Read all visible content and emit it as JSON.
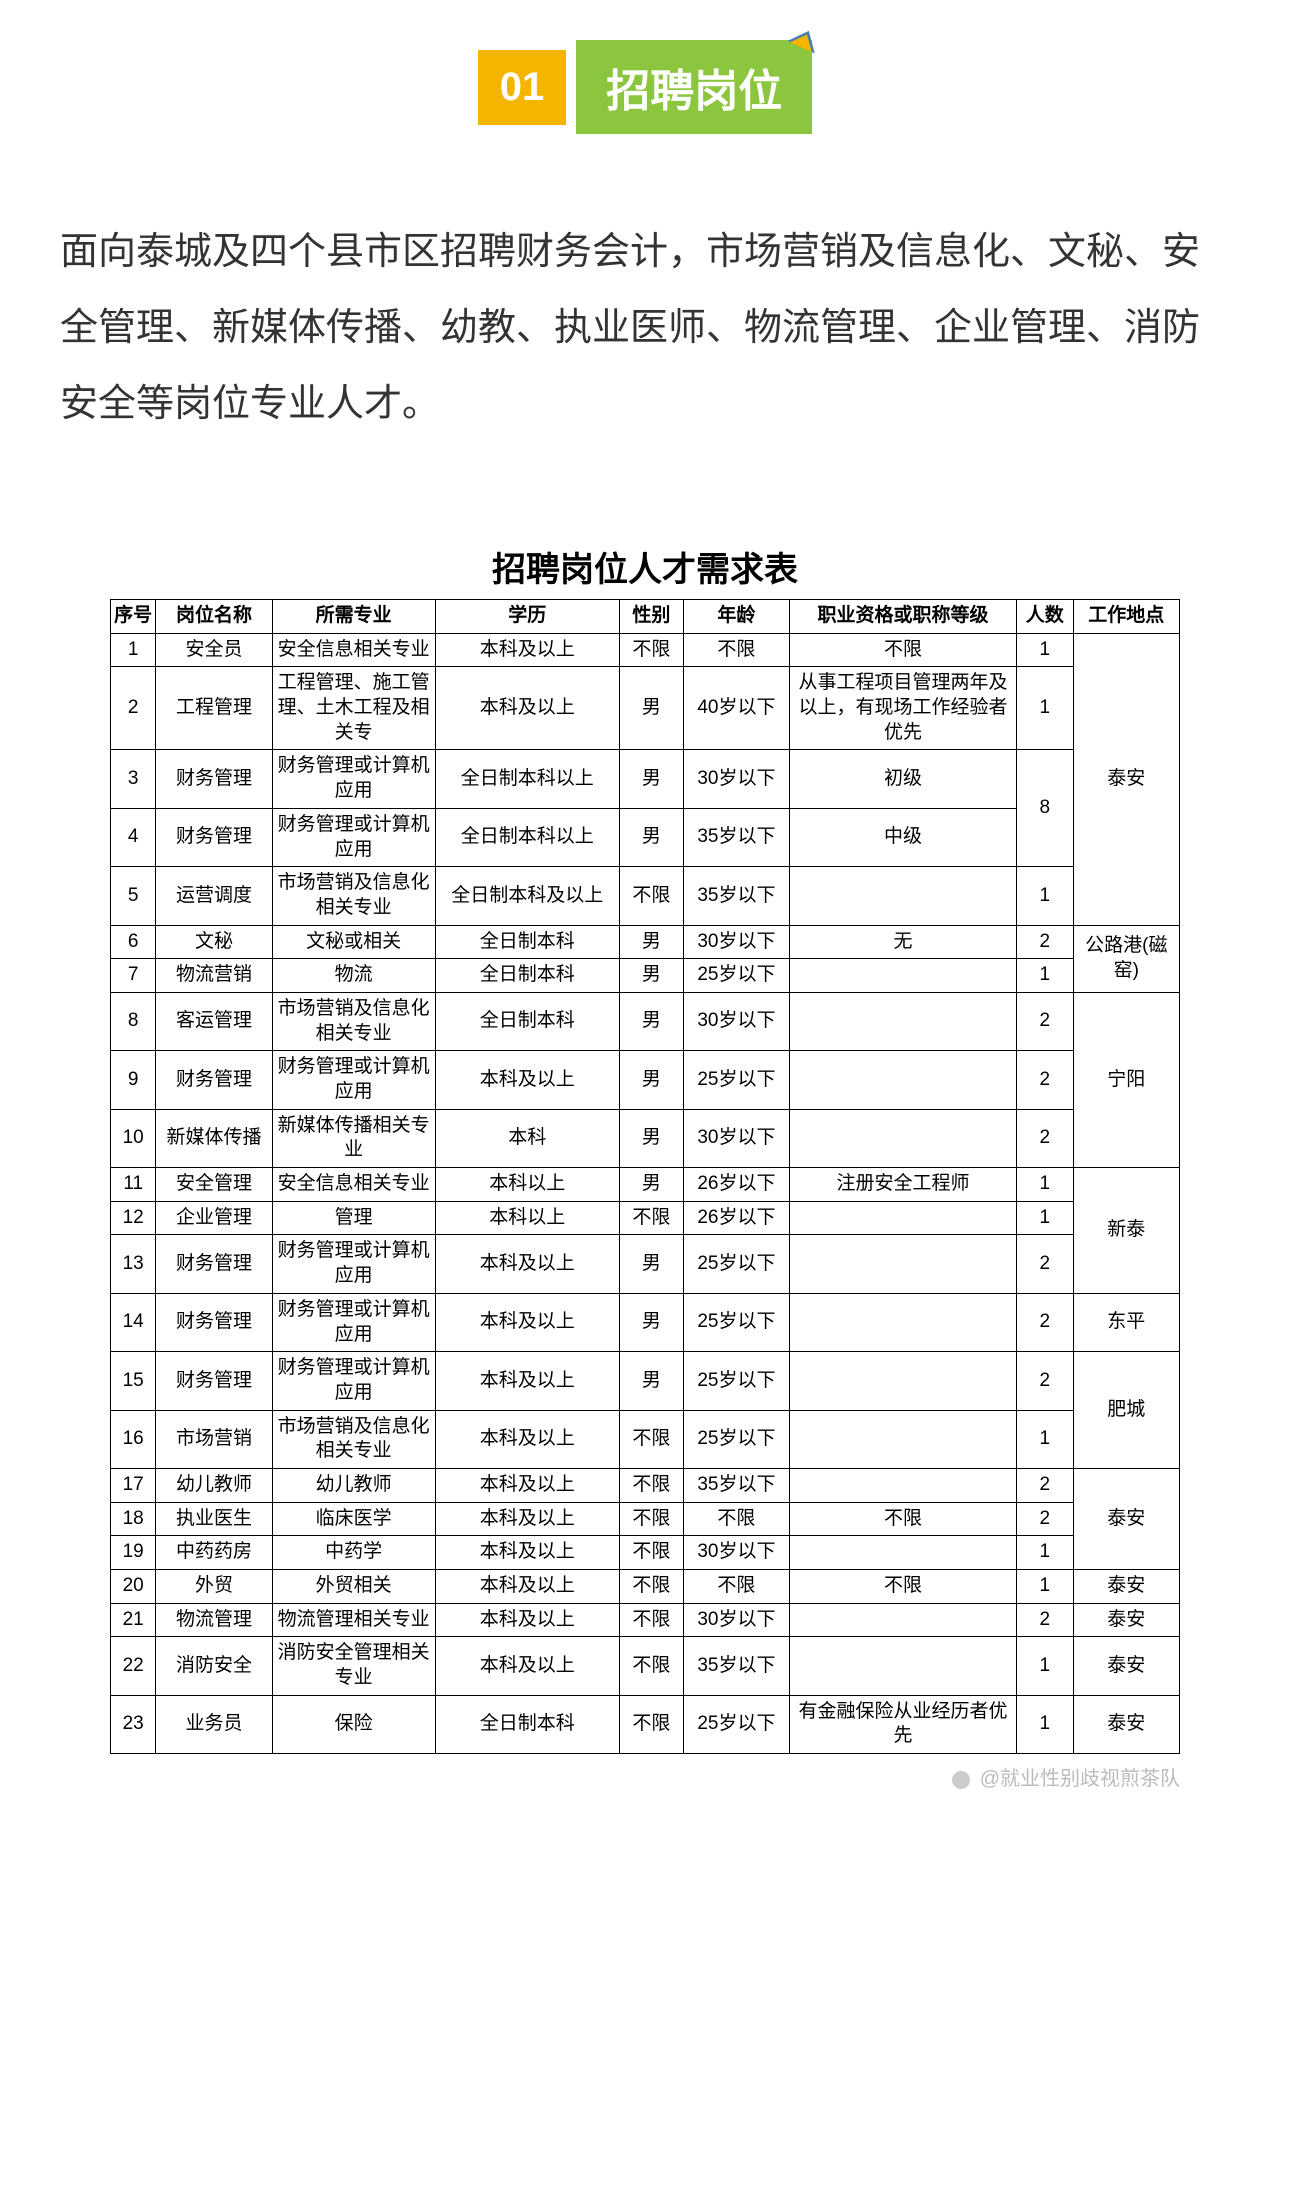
{
  "header": {
    "number": "01",
    "title": "招聘岗位"
  },
  "intro": "面向泰城及四个县市区招聘财务会计，市场营销及信息化、文秘、安全管理、新媒体传播、幼教、执业医师、物流管理、企业管理、消防安全等岗位专业人才。",
  "table": {
    "title": "招聘岗位人才需求表",
    "columns": [
      "序号",
      "岗位名称",
      "所需专业",
      "学历",
      "性别",
      "年龄",
      "职业资格或职称等级",
      "人数",
      "工作地点"
    ],
    "rows": [
      {
        "seq": "1",
        "pos": "安全员",
        "major": "安全信息相关专业",
        "edu": "本科及以上",
        "gender": "不限",
        "age": "不限",
        "qual": "不限",
        "count": "1",
        "loc": ""
      },
      {
        "seq": "2",
        "pos": "工程管理",
        "major": "工程管理、施工管理、土木工程及相关专",
        "edu": "本科及以上",
        "gender": "男",
        "age": "40岁以下",
        "qual": "从事工程项目管理两年及以上，有现场工作经验者优先",
        "count": "1",
        "loc": ""
      },
      {
        "seq": "3",
        "pos": "财务管理",
        "major": "财务管理或计算机应用",
        "edu": "全日制本科以上",
        "gender": "男",
        "age": "30岁以下",
        "qual": "初级",
        "count": "",
        "loc": ""
      },
      {
        "seq": "4",
        "pos": "财务管理",
        "major": "财务管理或计算机应用",
        "edu": "全日制本科以上",
        "gender": "男",
        "age": "35岁以下",
        "qual": "中级",
        "count": "",
        "loc": ""
      },
      {
        "seq": "5",
        "pos": "运营调度",
        "major": "市场营销及信息化相关专业",
        "edu": "全日制本科及以上",
        "gender": "不限",
        "age": "35岁以下",
        "qual": "",
        "count": "1",
        "loc": ""
      },
      {
        "seq": "6",
        "pos": "文秘",
        "major": "文秘或相关",
        "edu": "全日制本科",
        "gender": "男",
        "age": "30岁以下",
        "qual": "无",
        "count": "2",
        "loc": ""
      },
      {
        "seq": "7",
        "pos": "物流营销",
        "major": "物流",
        "edu": "全日制本科",
        "gender": "男",
        "age": "25岁以下",
        "qual": "",
        "count": "1",
        "loc": ""
      },
      {
        "seq": "8",
        "pos": "客运管理",
        "major": "市场营销及信息化相关专业",
        "edu": "全日制本科",
        "gender": "男",
        "age": "30岁以下",
        "qual": "",
        "count": "2",
        "loc": ""
      },
      {
        "seq": "9",
        "pos": "财务管理",
        "major": "财务管理或计算机应用",
        "edu": "本科及以上",
        "gender": "男",
        "age": "25岁以下",
        "qual": "",
        "count": "2",
        "loc": ""
      },
      {
        "seq": "10",
        "pos": "新媒体传播",
        "major": "新媒体传播相关专业",
        "edu": "本科",
        "gender": "男",
        "age": "30岁以下",
        "qual": "",
        "count": "2",
        "loc": ""
      },
      {
        "seq": "11",
        "pos": "安全管理",
        "major": "安全信息相关专业",
        "edu": "本科以上",
        "gender": "男",
        "age": "26岁以下",
        "qual": "注册安全工程师",
        "count": "1",
        "loc": ""
      },
      {
        "seq": "12",
        "pos": "企业管理",
        "major": "管理",
        "edu": "本科以上",
        "gender": "不限",
        "age": "26岁以下",
        "qual": "",
        "count": "1",
        "loc": ""
      },
      {
        "seq": "13",
        "pos": "财务管理",
        "major": "财务管理或计算机应用",
        "edu": "本科及以上",
        "gender": "男",
        "age": "25岁以下",
        "qual": "",
        "count": "2",
        "loc": ""
      },
      {
        "seq": "14",
        "pos": "财务管理",
        "major": "财务管理或计算机应用",
        "edu": "本科及以上",
        "gender": "男",
        "age": "25岁以下",
        "qual": "",
        "count": "2",
        "loc": "东平"
      },
      {
        "seq": "15",
        "pos": "财务管理",
        "major": "财务管理或计算机应用",
        "edu": "本科及以上",
        "gender": "男",
        "age": "25岁以下",
        "qual": "",
        "count": "2",
        "loc": ""
      },
      {
        "seq": "16",
        "pos": "市场营销",
        "major": "市场营销及信息化相关专业",
        "edu": "本科及以上",
        "gender": "不限",
        "age": "25岁以下",
        "qual": "",
        "count": "1",
        "loc": ""
      },
      {
        "seq": "17",
        "pos": "幼儿教师",
        "major": "幼儿教师",
        "edu": "本科及以上",
        "gender": "不限",
        "age": "35岁以下",
        "qual": "",
        "count": "2",
        "loc": ""
      },
      {
        "seq": "18",
        "pos": "执业医生",
        "major": "临床医学",
        "edu": "本科及以上",
        "gender": "不限",
        "age": "不限",
        "qual": "不限",
        "count": "2",
        "loc": ""
      },
      {
        "seq": "19",
        "pos": "中药药房",
        "major": "中药学",
        "edu": "本科及以上",
        "gender": "不限",
        "age": "30岁以下",
        "qual": "",
        "count": "1",
        "loc": ""
      },
      {
        "seq": "20",
        "pos": "外贸",
        "major": "外贸相关",
        "edu": "本科及以上",
        "gender": "不限",
        "age": "不限",
        "qual": "不限",
        "count": "1",
        "loc": "泰安"
      },
      {
        "seq": "21",
        "pos": "物流管理",
        "major": "物流管理相关专业",
        "edu": "本科及以上",
        "gender": "不限",
        "age": "30岁以下",
        "qual": "",
        "count": "2",
        "loc": "泰安"
      },
      {
        "seq": "22",
        "pos": "消防安全",
        "major": "消防安全管理相关专业",
        "edu": "本科及以上",
        "gender": "不限",
        "age": "35岁以下",
        "qual": "",
        "count": "1",
        "loc": "泰安"
      },
      {
        "seq": "23",
        "pos": "业务员",
        "major": "保险",
        "edu": "全日制本科",
        "gender": "不限",
        "age": "25岁以下",
        "qual": "有金融保险从业经历者优先",
        "count": "1",
        "loc": "泰安"
      }
    ],
    "merged_locations": {
      "taian1": {
        "label": "泰安",
        "rowspan": 5,
        "start": 0
      },
      "gonglu": {
        "label": "公路港(磁窑)",
        "rowspan": 2,
        "start": 5
      },
      "ningyang": {
        "label": "宁阳",
        "rowspan": 3,
        "start": 7
      },
      "xintai": {
        "label": "新泰",
        "rowspan": 3,
        "start": 10
      },
      "feicheng": {
        "label": "肥城",
        "rowspan": 2,
        "start": 14
      },
      "taian2": {
        "label": "泰安",
        "rowspan": 3,
        "start": 16
      }
    },
    "merged_count_8": {
      "label": "8",
      "rowspan": 2,
      "start": 2
    }
  },
  "watermark": "@就业性别歧视煎茶队"
}
